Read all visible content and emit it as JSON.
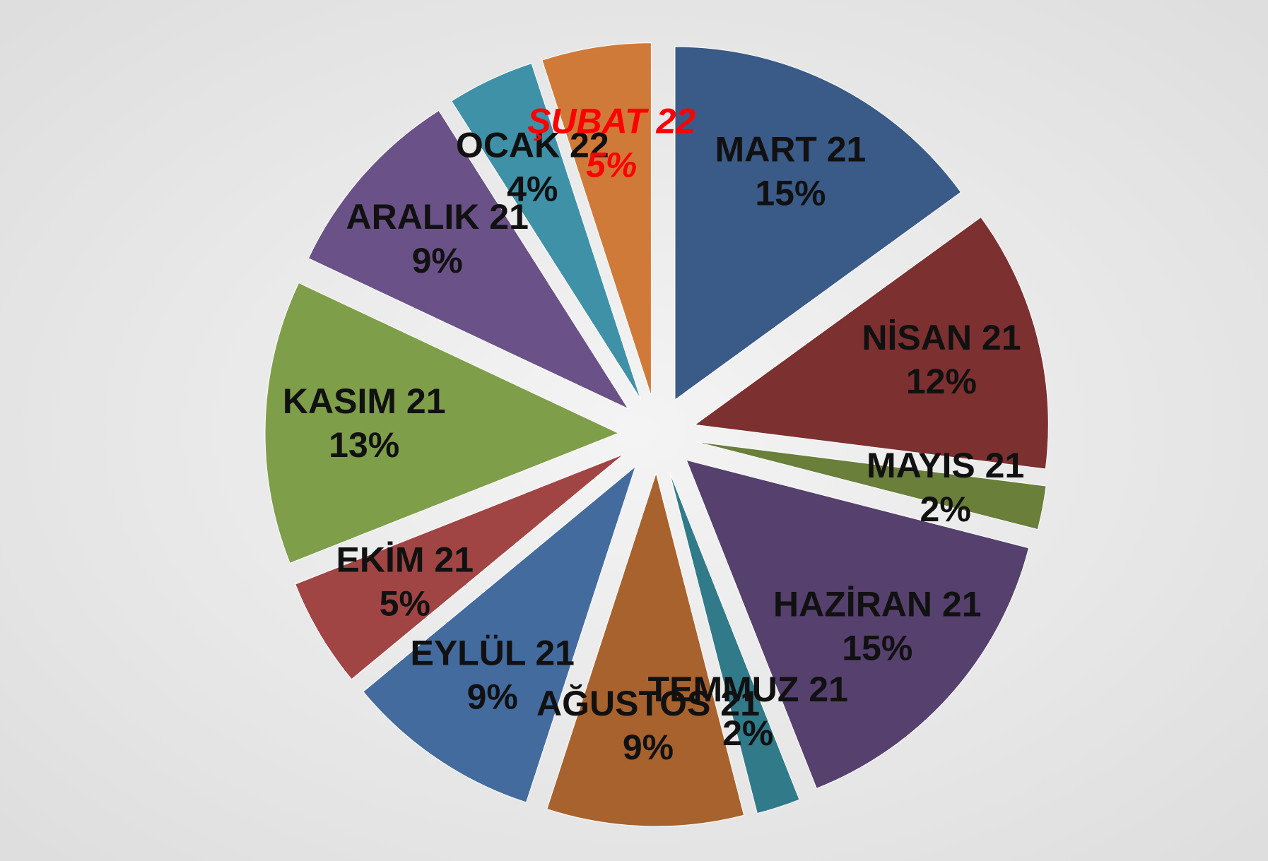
{
  "chart_data": {
    "type": "pie",
    "categories": [
      "MART 21",
      "NİSAN 21",
      "MAYIS 21",
      "HAZİRAN 21",
      "TEMMUZ 21",
      "AĞUSTOS 21",
      "EYLÜL 21",
      "EKİM 21",
      "KASIM 21",
      "ARALIK 21",
      "OCAK 22",
      "ŞUBAT 22"
    ],
    "values": [
      15,
      12,
      2,
      15,
      2,
      9,
      9,
      5,
      13,
      9,
      4,
      5
    ],
    "value_labels": [
      "15%",
      "12%",
      "2%",
      "15%",
      "2%",
      "9%",
      "9%",
      "5%",
      "13%",
      "9%",
      "4%",
      "5%"
    ],
    "colors": [
      "#3a5a87",
      "#7d3030",
      "#6a7f3a",
      "#55406e",
      "#317a8a",
      "#a8622e",
      "#436b9e",
      "#a04444",
      "#7f9e4a",
      "#6a5288",
      "#3f91a8",
      "#d07a3a"
    ],
    "label_colors": [
      "#111111",
      "#111111",
      "#111111",
      "#111111",
      "#111111",
      "#111111",
      "#111111",
      "#111111",
      "#111111",
      "#111111",
      "#111111",
      "#ff0000"
    ]
  }
}
